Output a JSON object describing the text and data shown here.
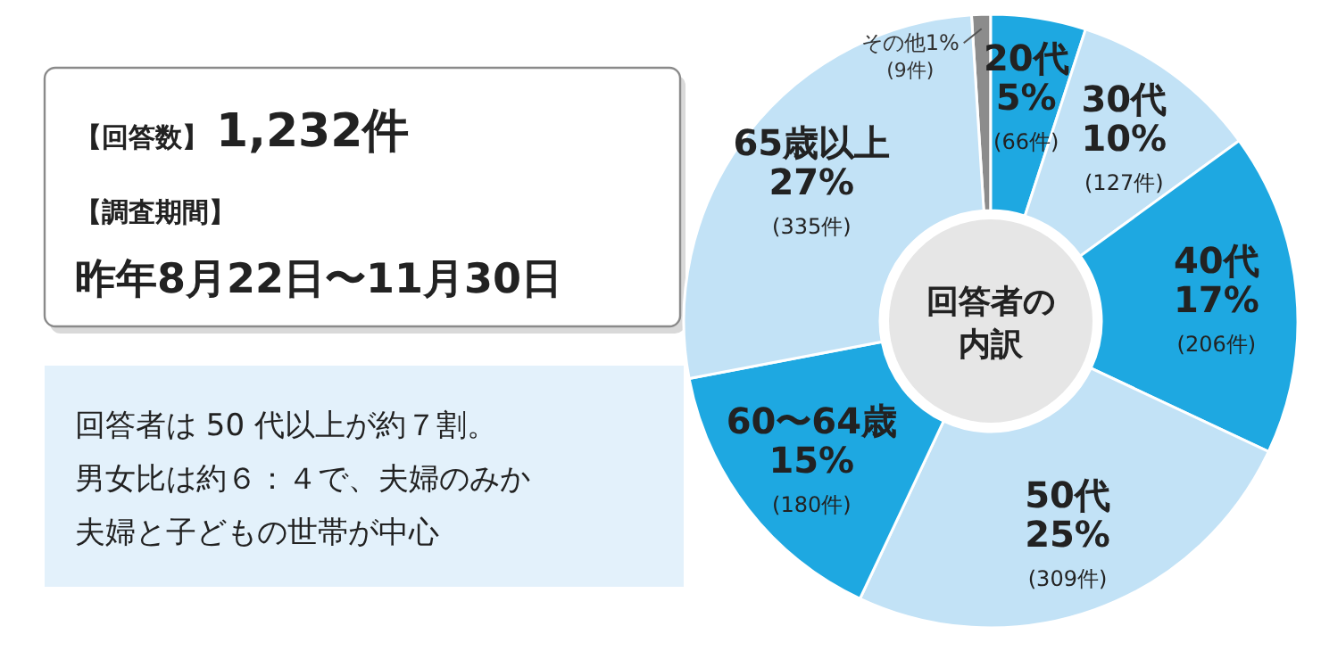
{
  "chart_data": [
    {
      "type": "other",
      "annotations": [
        "【回答数】",
        "1,232件",
        "【調査期間】",
        "昨年8月22日〜11月30日"
      ]
    },
    {
      "type": "other",
      "annotations": [
        "回答者は 50 代以上が約７割。",
        "男女比は約６：４で、夫婦のみか",
        "夫婦と子どもの世帯が中心"
      ]
    },
    {
      "type": "donut",
      "title": "回答者の",
      "subtitle": "内訳",
      "categories": [
        "その他",
        "20代",
        "30代",
        "40代",
        "50代",
        "60〜64歳",
        "65歳以上"
      ],
      "values": [
        1,
        5,
        10,
        17,
        25,
        15,
        27
      ],
      "colors": [
        "#8c8c8c",
        "#1ea8e1",
        "#c2e2f6",
        "#1ea8e1",
        "#c2e2f6",
        "#1ea8e1",
        "#c2e2f6"
      ],
      "value_labels": [
        "1%\n(9件)",
        "5%\n(66件)",
        "10%\n(127件)",
        "17%\n(206件)",
        "25%\n(309件)",
        "15%\n(180件)",
        "27%\n(335件)"
      ]
    }
  ]
}
